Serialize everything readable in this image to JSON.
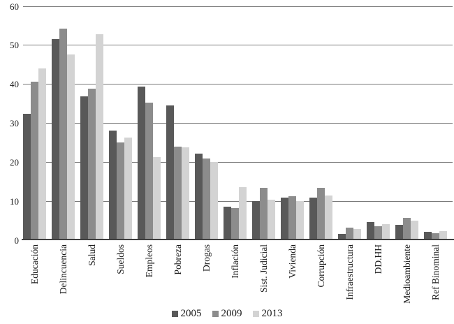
{
  "chart_data": {
    "type": "bar",
    "title": "",
    "xlabel": "",
    "ylabel": "",
    "categories": [
      "Educación",
      "Delincuencia",
      "Salud",
      "Sueldos",
      "Empleos",
      "Pobreza",
      "Drogas",
      "Inflación",
      "Sist. Judicial",
      "Vivienda",
      "Corrupción",
      "Infraestructura",
      "DD.HH",
      "Medioambiente",
      "Ref Binominal"
    ],
    "series": [
      {
        "name": "2005",
        "color": "#595959",
        "values": [
          32.5,
          51.5,
          36.9,
          28.2,
          39.4,
          34.6,
          22.2,
          8.6,
          10.1,
          10.9,
          10.9,
          1.6,
          4.6,
          3.9,
          2.2
        ]
      },
      {
        "name": "2009",
        "color": "#8c8c8c",
        "values": [
          40.7,
          54.3,
          38.8,
          25.0,
          35.3,
          24.0,
          21.0,
          8.2,
          13.4,
          11.3,
          13.4,
          3.2,
          3.5,
          5.8,
          1.8
        ]
      },
      {
        "name": "2013",
        "color": "#d3d3d3",
        "values": [
          44.0,
          47.6,
          52.8,
          26.3,
          21.4,
          23.8,
          20.0,
          13.6,
          10.4,
          10.1,
          11.5,
          2.9,
          4.1,
          5.1,
          2.4
        ]
      }
    ],
    "ylim": [
      0,
      60
    ],
    "yticks": [
      0,
      10,
      20,
      30,
      40,
      50,
      60
    ],
    "grid": true,
    "gridline_color": "#7a7a7a",
    "axis_color": "#3f3f3f",
    "legend_position": "bottom",
    "x_label_rotation": 90
  }
}
